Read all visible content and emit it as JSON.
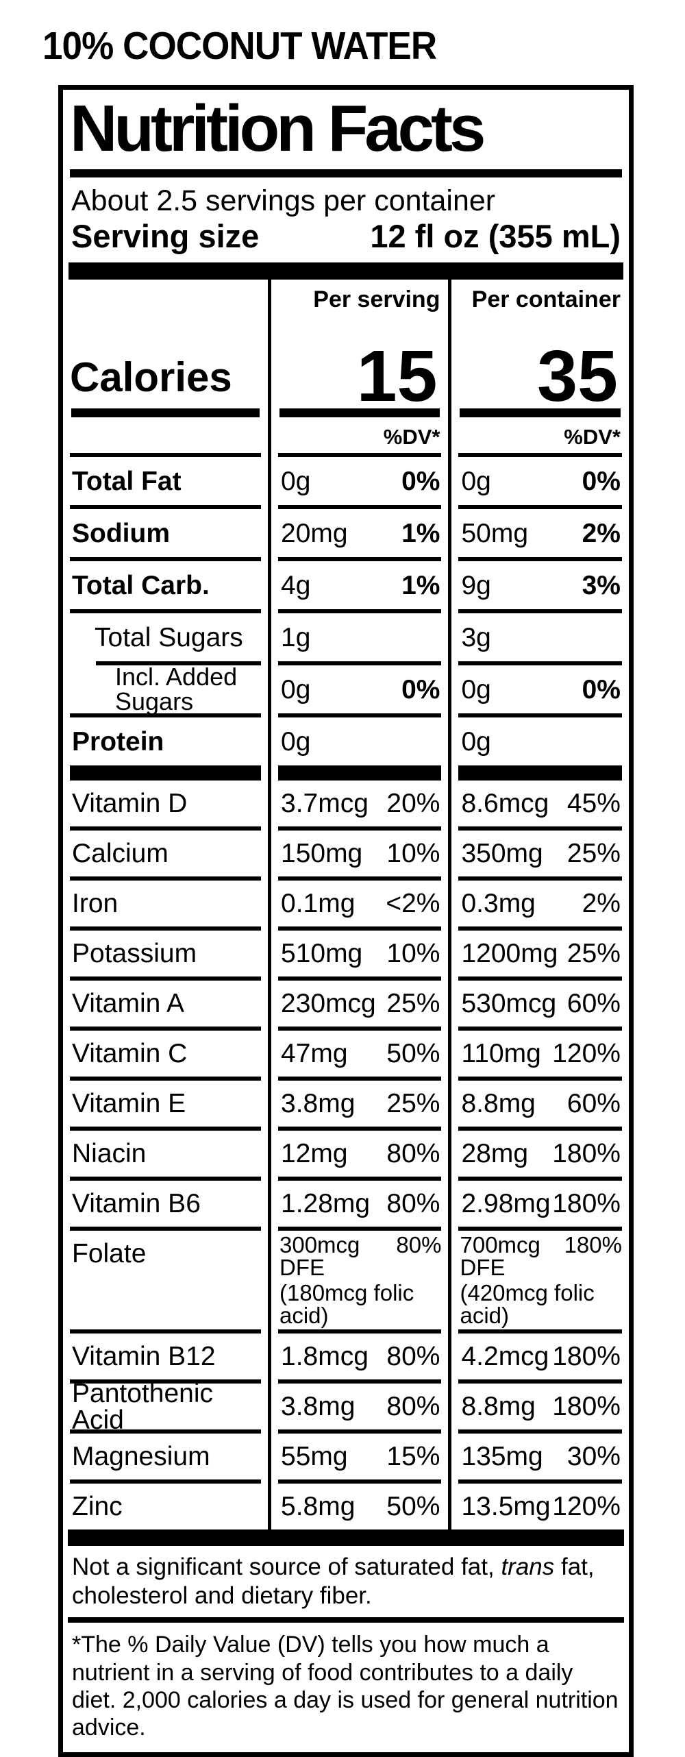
{
  "product_title": "10% COCONUT WATER",
  "colors": {
    "ink": "#000000",
    "paper": "#ffffff"
  },
  "label": {
    "title": "Nutrition Facts",
    "servings_per_container": "About 2.5 servings per container",
    "serving_size_label": "Serving size",
    "serving_size_value": "12 fl oz (355 mL)",
    "columns": {
      "per_serving": "Per serving",
      "per_container": "Per container"
    },
    "calories": {
      "label": "Calories",
      "per_serving": "15",
      "per_container": "35"
    },
    "dv_header": "%DV*",
    "core_rows": [
      {
        "label": "Total Fat",
        "ps_amount": "0g",
        "ps_dv": "0%",
        "pc_amount": "0g",
        "pc_dv": "0%"
      },
      {
        "label": "Sodium",
        "ps_amount": "20mg",
        "ps_dv": "1%",
        "pc_amount": "50mg",
        "pc_dv": "2%"
      },
      {
        "label": "Total Carb.",
        "ps_amount": "4g",
        "ps_dv": "1%",
        "pc_amount": "9g",
        "pc_dv": "3%"
      },
      {
        "label": "Total Sugars",
        "ps_amount": "1g",
        "ps_dv": "",
        "pc_amount": "3g",
        "pc_dv": ""
      },
      {
        "label": "Incl. Added Sugars",
        "ps_amount": "0g",
        "ps_dv": "0%",
        "pc_amount": "0g",
        "pc_dv": "0%"
      },
      {
        "label": "Protein",
        "ps_amount": "0g",
        "ps_dv": "",
        "pc_amount": "0g",
        "pc_dv": ""
      }
    ],
    "vitamin_rows": [
      {
        "label": "Vitamin D",
        "ps_amount": "3.7mcg",
        "ps_dv": "20%",
        "pc_amount": "8.6mcg",
        "pc_dv": "45%"
      },
      {
        "label": "Calcium",
        "ps_amount": "150mg",
        "ps_dv": "10%",
        "pc_amount": "350mg",
        "pc_dv": "25%"
      },
      {
        "label": "Iron",
        "ps_amount": "0.1mg",
        "ps_dv": "<2%",
        "pc_amount": "0.3mg",
        "pc_dv": "2%"
      },
      {
        "label": "Potassium",
        "ps_amount": "510mg",
        "ps_dv": "10%",
        "pc_amount": "1200mg",
        "pc_dv": "25%"
      },
      {
        "label": "Vitamin A",
        "ps_amount": "230mcg",
        "ps_dv": "25%",
        "pc_amount": "530mcg",
        "pc_dv": "60%"
      },
      {
        "label": "Vitamin C",
        "ps_amount": "47mg",
        "ps_dv": "50%",
        "pc_amount": "110mg",
        "pc_dv": "120%"
      },
      {
        "label": "Vitamin E",
        "ps_amount": "3.8mg",
        "ps_dv": "25%",
        "pc_amount": "8.8mg",
        "pc_dv": "60%"
      },
      {
        "label": "Niacin",
        "ps_amount": "12mg",
        "ps_dv": "80%",
        "pc_amount": "28mg",
        "pc_dv": "180%"
      },
      {
        "label": "Vitamin B6",
        "ps_amount": "1.28mg",
        "ps_dv": "80%",
        "pc_amount": "2.98mg",
        "pc_dv": "180%"
      },
      {
        "label": "Folate",
        "ps_amount": "300mcg DFE",
        "ps_dv": "80%",
        "ps_note": "(180mcg folic acid)",
        "pc_amount": "700mcg DFE",
        "pc_dv": "180%",
        "pc_note": "(420mcg folic acid)"
      },
      {
        "label": "Vitamin B12",
        "ps_amount": "1.8mcg",
        "ps_dv": "80%",
        "pc_amount": "4.2mcg",
        "pc_dv": "180%"
      },
      {
        "label": "Pantothenic Acid",
        "ps_amount": "3.8mg",
        "ps_dv": "80%",
        "pc_amount": "8.8mg",
        "pc_dv": "180%"
      },
      {
        "label": "Magnesium",
        "ps_amount": "55mg",
        "ps_dv": "15%",
        "pc_amount": "135mg",
        "pc_dv": "30%"
      },
      {
        "label": "Zinc",
        "ps_amount": "5.8mg",
        "ps_dv": "50%",
        "pc_amount": "13.5mg",
        "pc_dv": "120%"
      }
    ],
    "footnote1": {
      "pre": "Not a significant source of saturated fat, ",
      "italic": "trans",
      "post": " fat, cholesterol and dietary fiber."
    },
    "footnote2": "*The % Daily Value (DV) tells you how much a nutrient in a serving of food contributes to a daily diet. 2,000 calories a day is used for general nutrition advice."
  }
}
